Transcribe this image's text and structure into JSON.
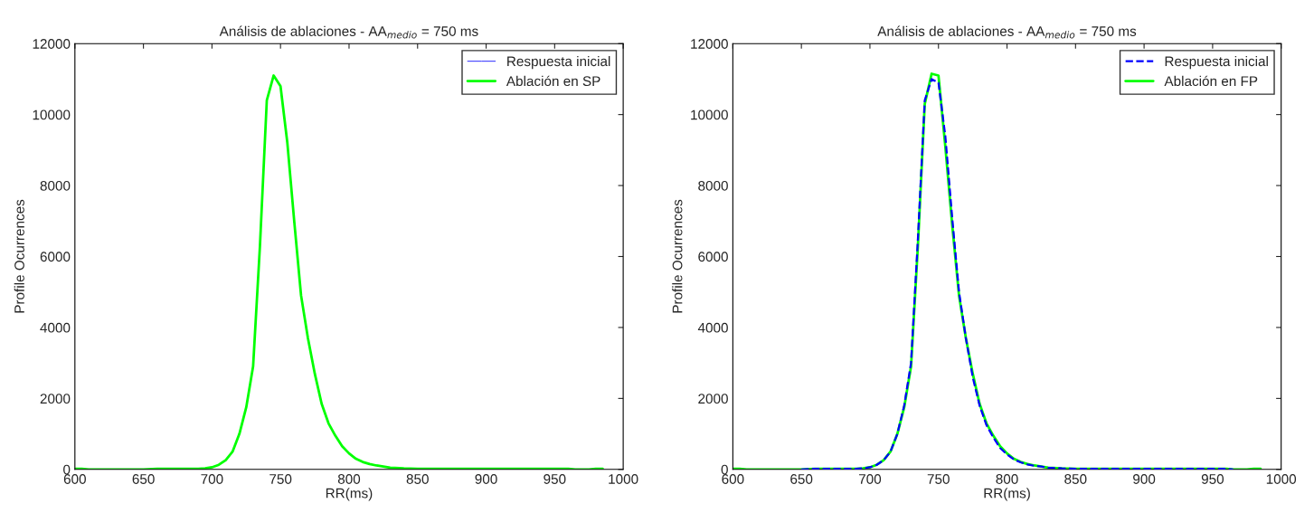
{
  "chart_data": [
    {
      "type": "line",
      "title": "Análisis de ablaciones - AA$_{medio}$ = 750 ms",
      "xlabel": "RR(ms)",
      "ylabel": "Profile Ocurrences",
      "x": [
        600,
        605,
        610,
        615,
        620,
        630,
        640,
        650,
        660,
        670,
        680,
        690,
        695,
        700,
        705,
        710,
        715,
        720,
        725,
        730,
        735,
        740,
        745,
        750,
        755,
        760,
        765,
        770,
        775,
        780,
        785,
        790,
        795,
        800,
        805,
        810,
        815,
        820,
        825,
        830,
        840,
        850,
        870,
        900,
        930,
        950,
        960,
        965,
        970,
        975,
        980,
        985
      ],
      "series": [
        {
          "name": "Respuesta inicial",
          "color": "#0000ff",
          "line_style": "solid",
          "values": [
            null,
            null,
            null,
            null,
            null,
            null,
            null,
            null,
            null,
            null,
            null,
            null,
            null,
            null,
            null,
            null,
            null,
            null,
            null,
            null,
            null,
            null,
            null,
            null,
            null,
            null,
            null,
            null,
            null,
            null,
            null,
            null,
            null,
            null,
            null,
            null,
            null,
            null,
            null,
            null,
            null,
            null,
            null,
            null,
            null,
            null,
            null,
            null,
            null,
            null,
            null,
            null
          ]
        },
        {
          "name": "Ablación en SP",
          "color": "#00ff00",
          "line_style": "solid",
          "values": [
            20,
            20,
            0,
            0,
            0,
            0,
            0,
            0,
            20,
            20,
            20,
            20,
            30,
            60,
            130,
            260,
            500,
            1000,
            1750,
            2900,
            6300,
            10400,
            11100,
            10800,
            9200,
            7000,
            4900,
            3700,
            2700,
            1850,
            1300,
            950,
            650,
            450,
            300,
            210,
            150,
            110,
            80,
            50,
            30,
            20,
            20,
            20,
            20,
            20,
            20,
            0,
            0,
            0,
            20,
            20
          ]
        }
      ],
      "xlim": [
        600,
        1000
      ],
      "xticks": [
        600,
        650,
        700,
        750,
        800,
        850,
        900,
        950,
        1000
      ],
      "ylim": [
        0,
        12000
      ],
      "yticks": [
        0,
        2000,
        4000,
        6000,
        8000,
        10000,
        12000
      ],
      "grid": false,
      "legend": "top right"
    },
    {
      "type": "line",
      "title": "Análisis de ablaciones - AA$_{medio}$ = 750 ms",
      "xlabel": "RR(ms)",
      "ylabel": "Profile Ocurrences",
      "x": [
        600,
        605,
        610,
        615,
        620,
        630,
        640,
        650,
        660,
        670,
        680,
        690,
        695,
        700,
        705,
        710,
        715,
        720,
        725,
        730,
        735,
        740,
        745,
        750,
        755,
        760,
        765,
        770,
        775,
        780,
        785,
        790,
        795,
        800,
        805,
        810,
        815,
        820,
        825,
        830,
        840,
        850,
        870,
        900,
        930,
        950,
        960,
        965,
        970,
        975,
        980,
        985
      ],
      "series": [
        {
          "name": "Respuesta inicial",
          "color": "#0000ff",
          "line_style": "dashed",
          "values": [
            null,
            null,
            null,
            null,
            null,
            null,
            null,
            0,
            20,
            20,
            20,
            20,
            30,
            60,
            130,
            260,
            500,
            1000,
            1800,
            3000,
            6500,
            10400,
            11000,
            10900,
            9400,
            7100,
            5000,
            3700,
            2600,
            1800,
            1250,
            900,
            600,
            420,
            280,
            200,
            140,
            100,
            80,
            50,
            30,
            20,
            20,
            20,
            20,
            20,
            20,
            0,
            null,
            null,
            null,
            null
          ]
        },
        {
          "name": "Ablación en FP",
          "color": "#00ff00",
          "line_style": "solid",
          "values": [
            20,
            20,
            0,
            0,
            0,
            0,
            0,
            0,
            20,
            20,
            20,
            20,
            30,
            60,
            130,
            260,
            500,
            1000,
            1750,
            2900,
            6300,
            10300,
            11150,
            11100,
            9100,
            6900,
            4900,
            3700,
            2700,
            1850,
            1300,
            950,
            650,
            450,
            300,
            210,
            150,
            110,
            80,
            50,
            30,
            20,
            20,
            20,
            20,
            20,
            20,
            0,
            0,
            0,
            20,
            20
          ]
        }
      ],
      "xlim": [
        600,
        1000
      ],
      "xticks": [
        600,
        650,
        700,
        750,
        800,
        850,
        900,
        950,
        1000
      ],
      "ylim": [
        0,
        12000
      ],
      "yticks": [
        0,
        2000,
        4000,
        6000,
        8000,
        10000,
        12000
      ],
      "grid": false,
      "legend": "top right"
    }
  ]
}
